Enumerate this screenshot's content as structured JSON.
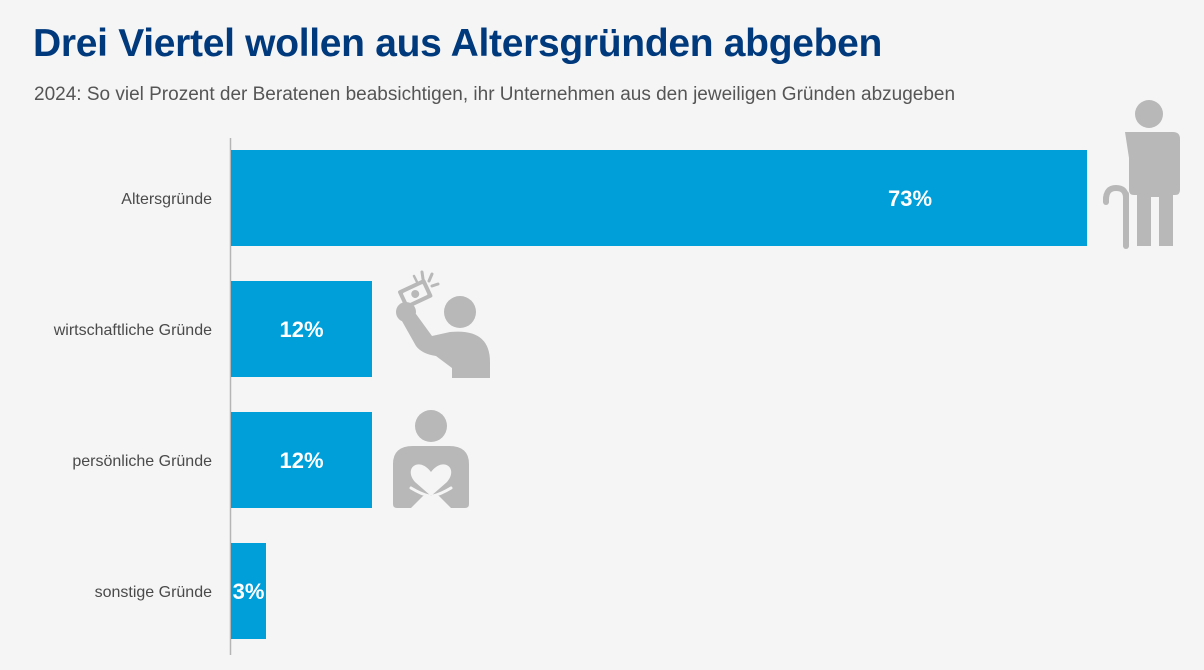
{
  "header": {
    "title": "Drei Viertel wollen aus Altersgründen abgeben",
    "subtitle": "2024: So viel Prozent der Beratenen beabsichtigen, ihr Unternehmen aus den jeweiligen Gründen abzugeben"
  },
  "colors": {
    "title": "#003a7d",
    "bar": "#009fda",
    "icon": "#b8b8b8",
    "axis": "#b5b5b5"
  },
  "icons": [
    "elderly-person-icon",
    "money-person-icon",
    "heart-hands-person-icon"
  ],
  "chart_data": {
    "type": "bar",
    "orientation": "horizontal",
    "title": "Drei Viertel wollen aus Altersgründen abgeben",
    "subtitle": "2024: So viel Prozent der Beratenen beabsichtigen, ihr Unternehmen aus den jeweiligen Gründen abzugeben",
    "categories": [
      "Altersgründe",
      "wirtschaftliche Gründe",
      "persönliche Gründe",
      "sonstige Gründe"
    ],
    "values": [
      73,
      12,
      12,
      3
    ],
    "value_labels": [
      "73%",
      "12%",
      "12%",
      "3%"
    ],
    "unit": "%",
    "xlabel": "",
    "ylabel": "",
    "xlim": [
      0,
      73
    ],
    "grid": false,
    "legend": "none"
  }
}
